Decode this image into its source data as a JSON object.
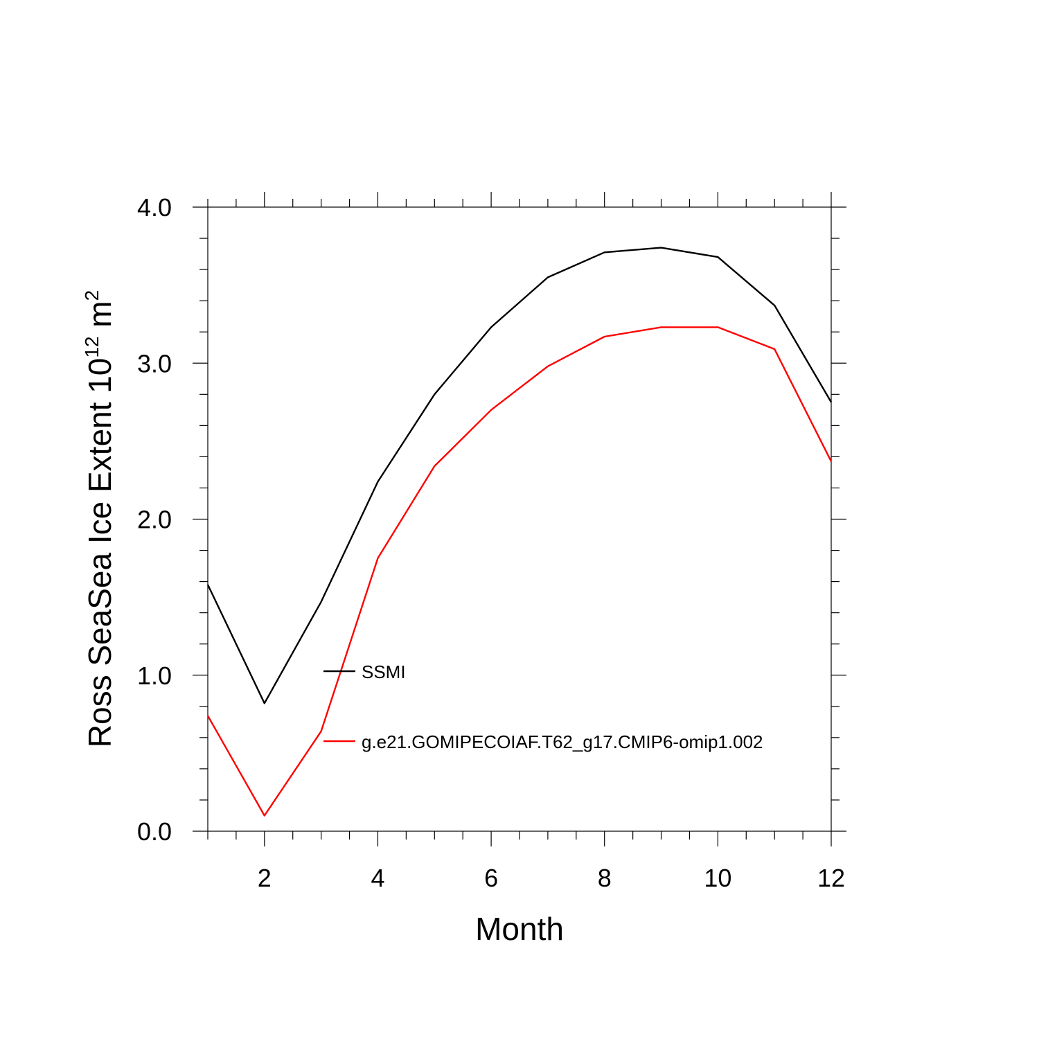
{
  "chart_data": {
    "type": "line",
    "x": [
      1,
      2,
      3,
      4,
      5,
      6,
      7,
      8,
      9,
      10,
      11,
      12
    ],
    "series": [
      {
        "name": "SSMI",
        "color": "#000000",
        "values": [
          1.58,
          0.82,
          1.47,
          2.24,
          2.8,
          3.23,
          3.55,
          3.71,
          3.74,
          3.68,
          3.37,
          2.75
        ]
      },
      {
        "name": "g.e21.GOMIPECOIAF.T62_g17.CMIP6-omip1.002",
        "color": "#ff0000",
        "values": [
          0.74,
          0.1,
          0.64,
          1.75,
          2.34,
          2.7,
          2.98,
          3.17,
          3.23,
          3.23,
          3.09,
          2.37
        ]
      }
    ],
    "xlabel": "Month",
    "ylabel_main": "Ross SeaSea Ice Extent 10",
    "ylabel_exponent": "12",
    "ylabel_unit": " m",
    "ylabel_unit_exponent": "2",
    "xlim": [
      1,
      12
    ],
    "ylim": [
      0,
      4
    ],
    "xticks": [
      2,
      4,
      6,
      8,
      10,
      12
    ],
    "yticks": [
      0.0,
      1.0,
      2.0,
      3.0,
      4.0
    ],
    "ytick_labels": [
      "0.0",
      "1.0",
      "2.0",
      "3.0",
      "4.0"
    ],
    "grid": false,
    "legend_position": "inside-lower-left"
  }
}
